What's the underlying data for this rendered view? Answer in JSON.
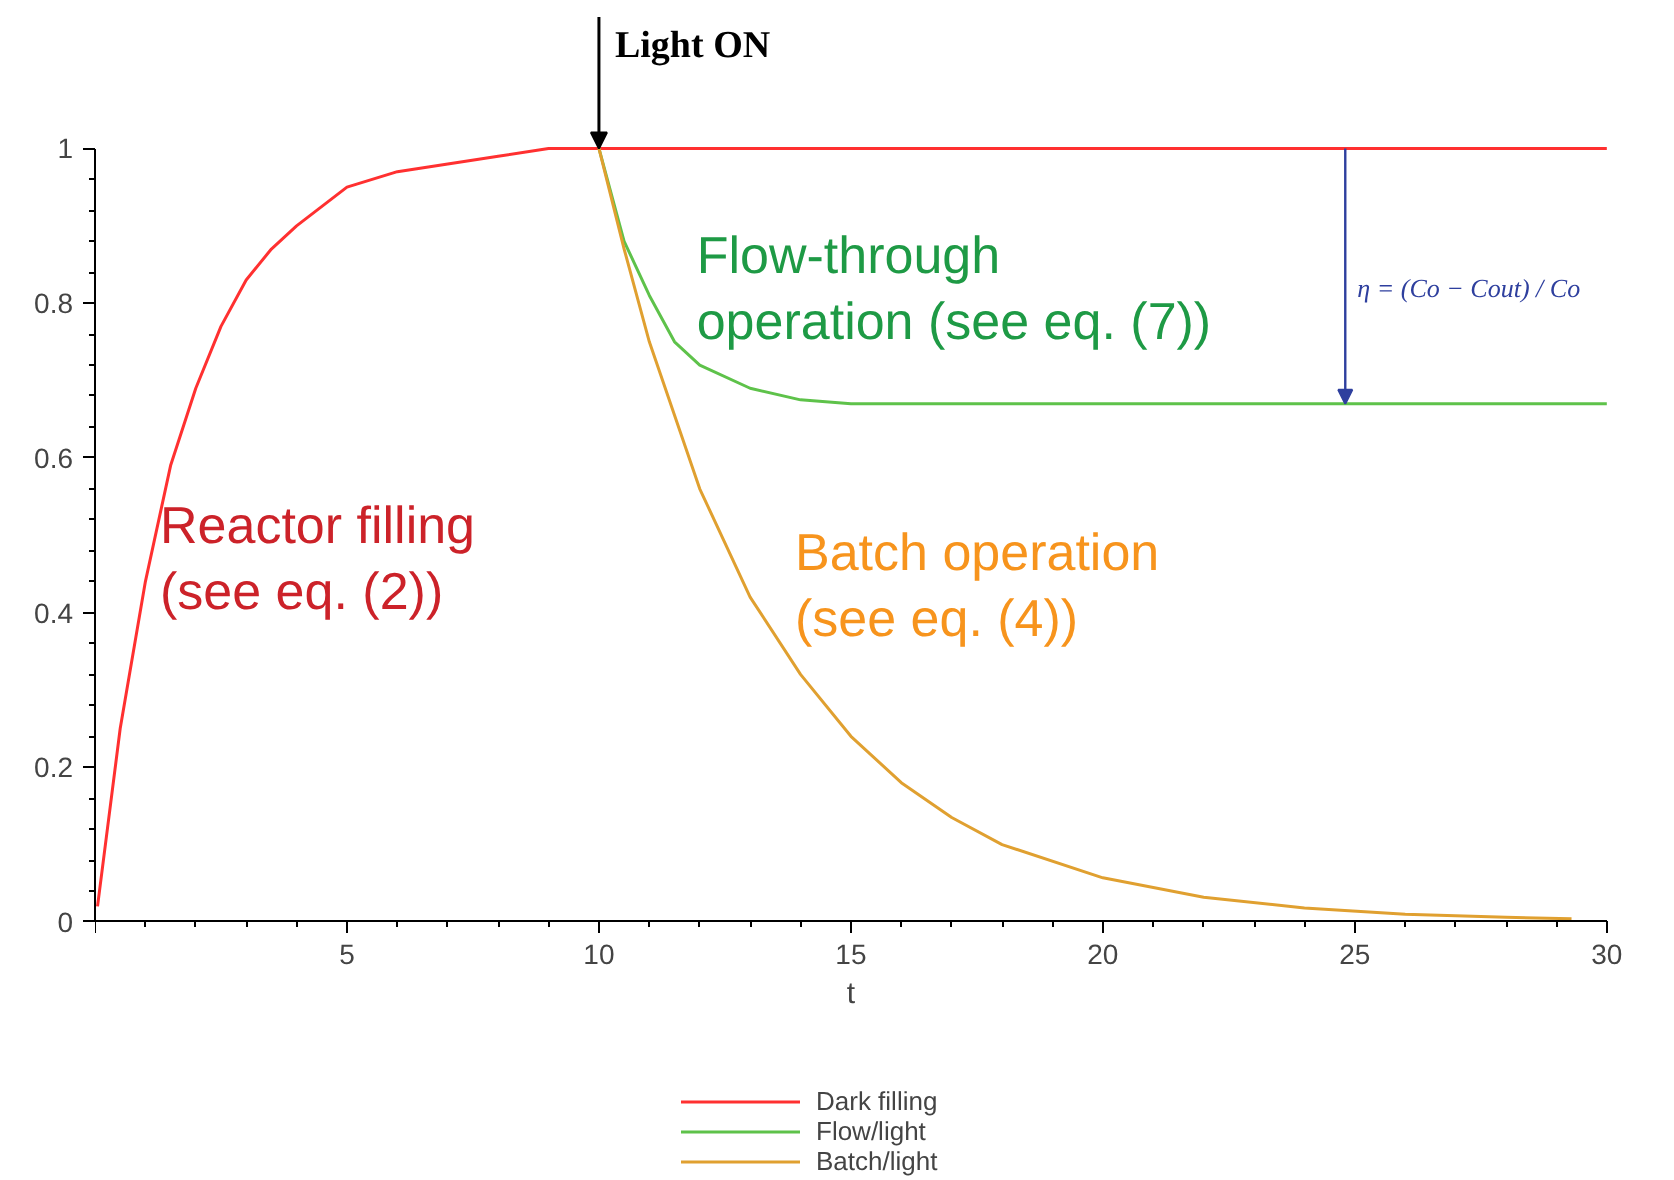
{
  "chart_data": {
    "type": "line",
    "xlabel": "t",
    "xlim": [
      0,
      30
    ],
    "ylim": [
      0,
      1
    ],
    "xticks": [
      {
        "value": 0,
        "label": null
      },
      5,
      10,
      15,
      20,
      25,
      30
    ],
    "yticks": [
      0,
      0.2,
      0.4,
      0.6,
      0.8,
      1
    ],
    "grid": false,
    "legend": "bottom",
    "marker": "none",
    "line_style": "solid",
    "series": [
      {
        "name": "Dark filling",
        "color": "#ff3030",
        "x": [
          0.05,
          0.5,
          1,
          1.5,
          2,
          2.5,
          3,
          3.5,
          4,
          5,
          6,
          7,
          8,
          9,
          10,
          30
        ],
        "values": [
          0.02,
          0.25,
          0.44,
          0.59,
          0.69,
          0.77,
          0.83,
          0.87,
          0.9,
          0.95,
          0.97,
          0.98,
          0.99,
          1,
          1,
          1
        ]
      },
      {
        "name": "Flow/light",
        "color": "#5ec24a",
        "x": [
          10,
          10.5,
          11,
          11.5,
          12,
          13,
          14,
          15,
          30
        ],
        "values": [
          1,
          0.88,
          0.81,
          0.75,
          0.72,
          0.69,
          0.675,
          0.67,
          0.67
        ]
      },
      {
        "name": "Batch/light",
        "color": "#e0a030",
        "x": [
          10,
          10.5,
          11,
          12,
          13,
          14,
          15,
          16,
          17,
          18,
          20,
          22,
          24,
          26,
          28,
          29.3
        ],
        "values": [
          1,
          0.87,
          0.75,
          0.56,
          0.42,
          0.32,
          0.24,
          0.18,
          0.135,
          0.1,
          0.057,
          0.032,
          0.018,
          0.01,
          0.006,
          0.004
        ]
      }
    ],
    "annotations": [
      "Reactor filling\n (see eq. (2))",
      "Flow-through\noperation (see eq. (7))",
      "Batch operation\n(see eq. (4))",
      "η = (Co − Cout) / Co",
      {
        "text": "Light ON",
        "x": 10,
        "y": 1
      }
    ]
  }
}
